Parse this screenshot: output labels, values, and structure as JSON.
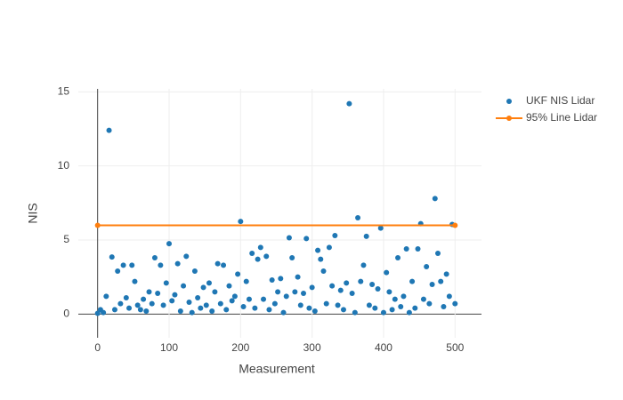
{
  "chart_data": {
    "type": "scatter",
    "x_label": "Measurement",
    "y_label": "NIS",
    "xlim": [
      -27,
      537
    ],
    "ylim": [
      -1.6,
      15.2
    ],
    "xticks": [
      0,
      100,
      200,
      300,
      400,
      500
    ],
    "yticks": [
      0,
      5,
      10,
      15
    ],
    "grid": true,
    "legend": "top-right",
    "series": [
      {
        "name": "UKF NIS Lidar",
        "color": "#1f77b4",
        "mode": "markers",
        "x": [
          0,
          4,
          8,
          12,
          16,
          20,
          24,
          28,
          32,
          36,
          40,
          44,
          48,
          52,
          56,
          60,
          64,
          68,
          72,
          76,
          80,
          84,
          88,
          92,
          96,
          100,
          104,
          108,
          112,
          116,
          120,
          124,
          128,
          132,
          136,
          140,
          144,
          148,
          152,
          156,
          160,
          164,
          168,
          172,
          176,
          180,
          184,
          188,
          192,
          196,
          200,
          204,
          208,
          212,
          216,
          220,
          224,
          228,
          232,
          236,
          240,
          244,
          248,
          252,
          256,
          260,
          264,
          268,
          272,
          276,
          280,
          284,
          288,
          292,
          296,
          300,
          304,
          308,
          312,
          316,
          320,
          324,
          328,
          332,
          336,
          340,
          344,
          348,
          352,
          356,
          360,
          364,
          368,
          372,
          376,
          380,
          384,
          388,
          392,
          396,
          400,
          404,
          408,
          412,
          416,
          420,
          424,
          428,
          432,
          436,
          440,
          444,
          448,
          452,
          456,
          460,
          464,
          468,
          472,
          476,
          480,
          484,
          488,
          492,
          496,
          500
        ],
        "values": [
          0.05,
          0.3,
          0.1,
          1.2,
          12.4,
          3.85,
          0.3,
          2.9,
          0.7,
          3.3,
          1.1,
          0.4,
          3.3,
          2.2,
          0.6,
          0.3,
          1.0,
          0.2,
          1.5,
          0.7,
          3.8,
          1.4,
          3.3,
          0.6,
          2.1,
          4.75,
          0.9,
          1.3,
          3.4,
          0.2,
          1.9,
          3.9,
          0.8,
          0.1,
          2.9,
          1.1,
          0.4,
          1.8,
          0.6,
          2.1,
          0.2,
          1.5,
          3.4,
          0.7,
          3.3,
          0.3,
          1.9,
          0.9,
          1.2,
          2.7,
          6.25,
          0.5,
          2.2,
          1.0,
          4.1,
          0.4,
          3.7,
          4.5,
          1.0,
          3.9,
          0.3,
          2.3,
          0.7,
          1.5,
          2.4,
          0.1,
          1.2,
          5.15,
          3.8,
          1.5,
          2.5,
          0.6,
          1.4,
          5.1,
          0.4,
          1.8,
          0.2,
          4.3,
          3.7,
          2.9,
          0.7,
          4.5,
          1.9,
          5.3,
          0.6,
          1.6,
          0.3,
          2.1,
          14.2,
          1.4,
          0.1,
          6.5,
          2.2,
          3.3,
          5.25,
          0.6,
          2.0,
          0.4,
          1.7,
          5.8,
          0.1,
          2.8,
          1.5,
          0.3,
          1.0,
          3.8,
          0.5,
          1.2,
          4.4,
          0.1,
          2.2,
          0.4,
          4.4,
          6.1,
          1.0,
          3.2,
          0.7,
          2.0,
          7.8,
          4.1,
          2.2,
          0.5,
          2.7,
          1.2,
          6.05,
          0.7
        ]
      },
      {
        "name": "95% Line Lidar",
        "color": "#ff7f0e",
        "mode": "lines+markers",
        "x": [
          0,
          500
        ],
        "values": [
          5.99,
          5.99
        ]
      }
    ]
  }
}
